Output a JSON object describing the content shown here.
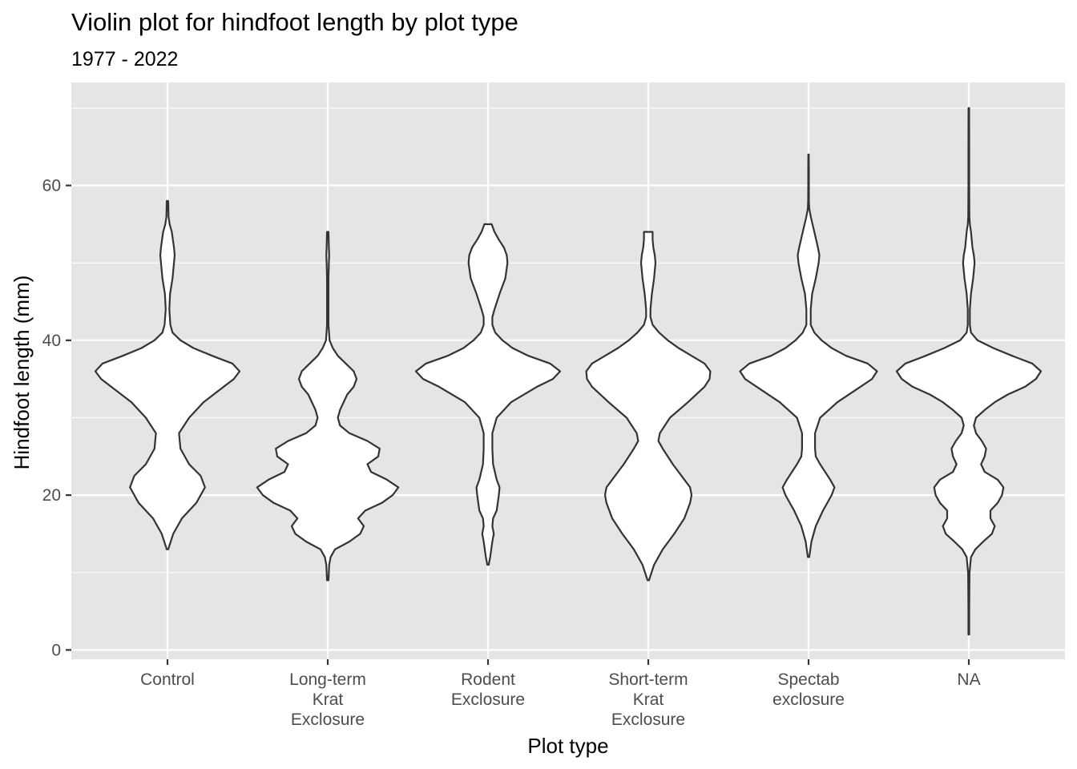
{
  "chart_data": {
    "type": "violin",
    "title": "Violin plot for hindfoot length by plot type",
    "subtitle": "1977 - 2022",
    "xlabel": "Plot type",
    "ylabel": "Hindfoot length (mm)",
    "ylim": [
      -1.2,
      73.3
    ],
    "yticks": [
      0,
      20,
      40,
      60
    ],
    "grid": true,
    "colors": {
      "panel": "#e5e5e5",
      "grid": "#ffffff",
      "violin_fill": "#ffffff",
      "violin_outline": "#333333"
    },
    "categories": [
      {
        "label": [
          "Control"
        ]
      },
      {
        "label": [
          "Long-term",
          "Krat",
          "Exclosure"
        ]
      },
      {
        "label": [
          "Rodent",
          "Exclosure"
        ]
      },
      {
        "label": [
          "Short-term",
          "Krat",
          "Exclosure"
        ]
      },
      {
        "label": [
          "Spectab",
          "exclosure"
        ]
      },
      {
        "label": [
          "NA"
        ]
      }
    ],
    "violins": [
      {
        "category": "Control",
        "min": 13,
        "max": 58,
        "profile": [
          [
            13,
            0.01
          ],
          [
            15,
            0.08
          ],
          [
            17,
            0.2
          ],
          [
            19,
            0.4
          ],
          [
            21,
            0.52
          ],
          [
            22.5,
            0.46
          ],
          [
            24,
            0.3
          ],
          [
            26,
            0.18
          ],
          [
            28,
            0.16
          ],
          [
            30,
            0.3
          ],
          [
            32,
            0.5
          ],
          [
            34,
            0.78
          ],
          [
            35,
            0.92
          ],
          [
            36,
            1.0
          ],
          [
            37,
            0.9
          ],
          [
            38,
            0.62
          ],
          [
            39,
            0.36
          ],
          [
            40,
            0.18
          ],
          [
            41,
            0.07
          ],
          [
            42,
            0.04
          ],
          [
            44,
            0.025
          ],
          [
            46,
            0.035
          ],
          [
            48,
            0.07
          ],
          [
            50,
            0.09
          ],
          [
            51,
            0.1
          ],
          [
            52,
            0.09
          ],
          [
            54,
            0.06
          ],
          [
            55,
            0.03
          ],
          [
            56,
            0.015
          ],
          [
            58,
            0.01
          ]
        ]
      },
      {
        "category": "Long-term Krat Exclosure",
        "min": 9,
        "max": 54,
        "profile": [
          [
            9,
            0.01
          ],
          [
            11,
            0.02
          ],
          [
            12,
            0.04
          ],
          [
            13,
            0.1
          ],
          [
            14,
            0.3
          ],
          [
            15,
            0.45
          ],
          [
            16,
            0.5
          ],
          [
            17,
            0.42
          ],
          [
            18,
            0.52
          ],
          [
            19,
            0.75
          ],
          [
            20,
            0.9
          ],
          [
            21,
            0.98
          ],
          [
            22,
            0.82
          ],
          [
            23,
            0.6
          ],
          [
            24,
            0.55
          ],
          [
            25,
            0.7
          ],
          [
            26,
            0.72
          ],
          [
            27,
            0.55
          ],
          [
            28,
            0.3
          ],
          [
            29,
            0.17
          ],
          [
            30,
            0.14
          ],
          [
            31,
            0.17
          ],
          [
            32,
            0.22
          ],
          [
            33,
            0.27
          ],
          [
            34,
            0.36
          ],
          [
            35,
            0.4
          ],
          [
            36,
            0.36
          ],
          [
            37,
            0.25
          ],
          [
            38,
            0.14
          ],
          [
            39,
            0.07
          ],
          [
            40,
            0.025
          ],
          [
            42,
            0.01
          ],
          [
            44,
            0.01
          ],
          [
            46,
            0.01
          ],
          [
            48,
            0.01
          ],
          [
            50,
            0.015
          ],
          [
            51,
            0.02
          ],
          [
            52,
            0.015
          ],
          [
            54,
            0.01
          ]
        ]
      },
      {
        "category": "Rodent Exclosure",
        "min": 11,
        "max": 55,
        "profile": [
          [
            11,
            0.01
          ],
          [
            12,
            0.03
          ],
          [
            14,
            0.06
          ],
          [
            15,
            0.08
          ],
          [
            16,
            0.06
          ],
          [
            17,
            0.07
          ],
          [
            18,
            0.12
          ],
          [
            20,
            0.15
          ],
          [
            21,
            0.16
          ],
          [
            22,
            0.12
          ],
          [
            24,
            0.07
          ],
          [
            26,
            0.06
          ],
          [
            28,
            0.06
          ],
          [
            30,
            0.12
          ],
          [
            32,
            0.32
          ],
          [
            34,
            0.68
          ],
          [
            35,
            0.9
          ],
          [
            36,
            1.0
          ],
          [
            37,
            0.86
          ],
          [
            38,
            0.56
          ],
          [
            39,
            0.34
          ],
          [
            40,
            0.2
          ],
          [
            41,
            0.1
          ],
          [
            42,
            0.06
          ],
          [
            43,
            0.06
          ],
          [
            44,
            0.09
          ],
          [
            46,
            0.16
          ],
          [
            48,
            0.24
          ],
          [
            50,
            0.27
          ],
          [
            51,
            0.26
          ],
          [
            52,
            0.22
          ],
          [
            53,
            0.15
          ],
          [
            54,
            0.09
          ],
          [
            55,
            0.05
          ]
        ]
      },
      {
        "category": "Short-term Krat Exclosure",
        "min": 9,
        "max": 54,
        "profile": [
          [
            9,
            0.01
          ],
          [
            11,
            0.08
          ],
          [
            13,
            0.2
          ],
          [
            15,
            0.36
          ],
          [
            17,
            0.5
          ],
          [
            19,
            0.58
          ],
          [
            20,
            0.6
          ],
          [
            21,
            0.58
          ],
          [
            22,
            0.5
          ],
          [
            24,
            0.34
          ],
          [
            26,
            0.2
          ],
          [
            27,
            0.14
          ],
          [
            28,
            0.16
          ],
          [
            30,
            0.3
          ],
          [
            32,
            0.55
          ],
          [
            34,
            0.78
          ],
          [
            35,
            0.85
          ],
          [
            36,
            0.86
          ],
          [
            37,
            0.78
          ],
          [
            38,
            0.6
          ],
          [
            39,
            0.42
          ],
          [
            40,
            0.27
          ],
          [
            41,
            0.15
          ],
          [
            42,
            0.06
          ],
          [
            43,
            0.03
          ],
          [
            44,
            0.03
          ],
          [
            46,
            0.05
          ],
          [
            48,
            0.08
          ],
          [
            50,
            0.1
          ],
          [
            51,
            0.09
          ],
          [
            52,
            0.07
          ],
          [
            53,
            0.06
          ],
          [
            54,
            0.06
          ]
        ]
      },
      {
        "category": "Spectab exclosure",
        "min": 12,
        "max": 64,
        "profile": [
          [
            12,
            0.01
          ],
          [
            14,
            0.04
          ],
          [
            16,
            0.1
          ],
          [
            18,
            0.2
          ],
          [
            20,
            0.32
          ],
          [
            21,
            0.36
          ],
          [
            22,
            0.3
          ],
          [
            24,
            0.16
          ],
          [
            25,
            0.1
          ],
          [
            26,
            0.09
          ],
          [
            28,
            0.09
          ],
          [
            30,
            0.16
          ],
          [
            32,
            0.4
          ],
          [
            34,
            0.72
          ],
          [
            35,
            0.88
          ],
          [
            36,
            0.95
          ],
          [
            37,
            0.82
          ],
          [
            38,
            0.52
          ],
          [
            39,
            0.32
          ],
          [
            40,
            0.18
          ],
          [
            41,
            0.08
          ],
          [
            42,
            0.03
          ],
          [
            44,
            0.03
          ],
          [
            46,
            0.05
          ],
          [
            48,
            0.1
          ],
          [
            50,
            0.14
          ],
          [
            51,
            0.15
          ],
          [
            52,
            0.13
          ],
          [
            54,
            0.08
          ],
          [
            56,
            0.03
          ],
          [
            57,
            0.01
          ],
          [
            58,
            0.005
          ],
          [
            60,
            0.004
          ],
          [
            62,
            0.004
          ],
          [
            64,
            0.003
          ]
        ]
      },
      {
        "category": "NA",
        "min": 2,
        "max": 70,
        "profile": [
          [
            2,
            0.005
          ],
          [
            5,
            0.006
          ],
          [
            8,
            0.008
          ],
          [
            10,
            0.01
          ],
          [
            12,
            0.03
          ],
          [
            13,
            0.09
          ],
          [
            14,
            0.2
          ],
          [
            15,
            0.32
          ],
          [
            16,
            0.36
          ],
          [
            17,
            0.3
          ],
          [
            18,
            0.3
          ],
          [
            19,
            0.4
          ],
          [
            20,
            0.46
          ],
          [
            21,
            0.48
          ],
          [
            22,
            0.4
          ],
          [
            23,
            0.22
          ],
          [
            24,
            0.17
          ],
          [
            25,
            0.22
          ],
          [
            26,
            0.24
          ],
          [
            27,
            0.18
          ],
          [
            28,
            0.1
          ],
          [
            29,
            0.07
          ],
          [
            30,
            0.1
          ],
          [
            31,
            0.22
          ],
          [
            32,
            0.36
          ],
          [
            33,
            0.54
          ],
          [
            34,
            0.78
          ],
          [
            35,
            0.93
          ],
          [
            36,
            1.0
          ],
          [
            37,
            0.88
          ],
          [
            38,
            0.6
          ],
          [
            39,
            0.34
          ],
          [
            40,
            0.12
          ],
          [
            41,
            0.03
          ],
          [
            42,
            0.015
          ],
          [
            44,
            0.015
          ],
          [
            46,
            0.03
          ],
          [
            48,
            0.06
          ],
          [
            50,
            0.08
          ],
          [
            51,
            0.07
          ],
          [
            52,
            0.05
          ],
          [
            54,
            0.03
          ],
          [
            55,
            0.015
          ],
          [
            56,
            0.008
          ],
          [
            60,
            0.005
          ],
          [
            65,
            0.005
          ],
          [
            70,
            0.004
          ]
        ]
      }
    ]
  }
}
